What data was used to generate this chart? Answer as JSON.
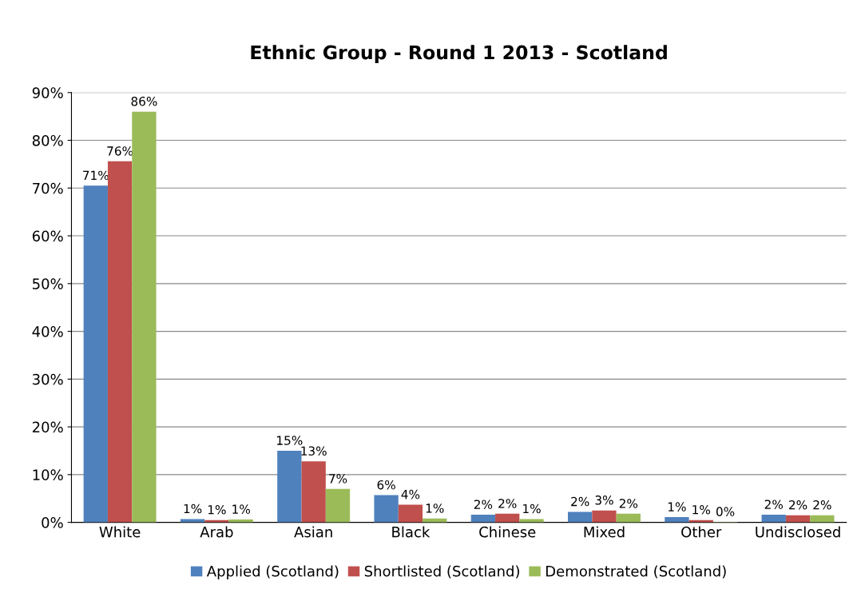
{
  "chart_data": {
    "type": "bar",
    "title": "Ethnic Group - Round 1 2013 - Scotland",
    "categories": [
      "White",
      "Arab",
      "Asian",
      "Black",
      "Chinese",
      "Mixed",
      "Other",
      "Undisclosed"
    ],
    "series": [
      {
        "name": "Applied (Scotland)",
        "color": "#4f81bd",
        "values": [
          70.5,
          0.7,
          15,
          5.7,
          1.6,
          2.2,
          1.1,
          1.6
        ],
        "value_labels": [
          "71%",
          "1%",
          "15%",
          "6%",
          "2%",
          "2%",
          "1%",
          "2%"
        ]
      },
      {
        "name": "Shortlisted (Scotland)",
        "color": "#c0504d",
        "values": [
          75.6,
          0.5,
          12.8,
          3.7,
          1.8,
          2.5,
          0.5,
          1.5
        ],
        "value_labels": [
          "76%",
          "1%",
          "13%",
          "4%",
          "2%",
          "3%",
          "1%",
          "2%"
        ]
      },
      {
        "name": "Demonstrated (Scotland)",
        "color": "#9bbb59",
        "values": [
          86,
          0.6,
          7,
          0.8,
          0.7,
          1.8,
          0.1,
          1.5
        ],
        "value_labels": [
          "86%",
          "1%",
          "7%",
          "1%",
          "1%",
          "2%",
          "0%",
          "2%"
        ]
      }
    ],
    "ylim": [
      0,
      90
    ],
    "yticks": [
      {
        "value": 0,
        "label": "0%"
      },
      {
        "value": 10,
        "label": "10%"
      },
      {
        "value": 20,
        "label": "20%"
      },
      {
        "value": 30,
        "label": "30%"
      },
      {
        "value": 40,
        "label": "40%"
      },
      {
        "value": 50,
        "label": "50%"
      },
      {
        "value": 60,
        "label": "60%"
      },
      {
        "value": 70,
        "label": "70%"
      },
      {
        "value": 80,
        "label": "80%"
      },
      {
        "value": 90,
        "label": "90%"
      }
    ],
    "grid": "y",
    "legend": "bottom"
  }
}
